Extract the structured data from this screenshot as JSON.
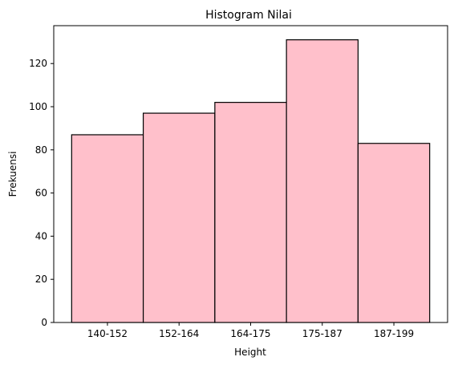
{
  "chart_data": {
    "type": "bar",
    "title": "Histogram Nilai",
    "xlabel": "Height",
    "ylabel": "Frekuensi",
    "categories": [
      "140-152",
      "152-164",
      "164-175",
      "175-187",
      "187-199"
    ],
    "values": [
      87,
      97,
      102,
      131,
      83
    ],
    "ylim": [
      0,
      137.55
    ],
    "yticks": [
      0,
      20,
      40,
      60,
      80,
      100,
      120
    ],
    "grid": false,
    "bar_color": "#ffc0cb",
    "edge_color": "#000000"
  }
}
